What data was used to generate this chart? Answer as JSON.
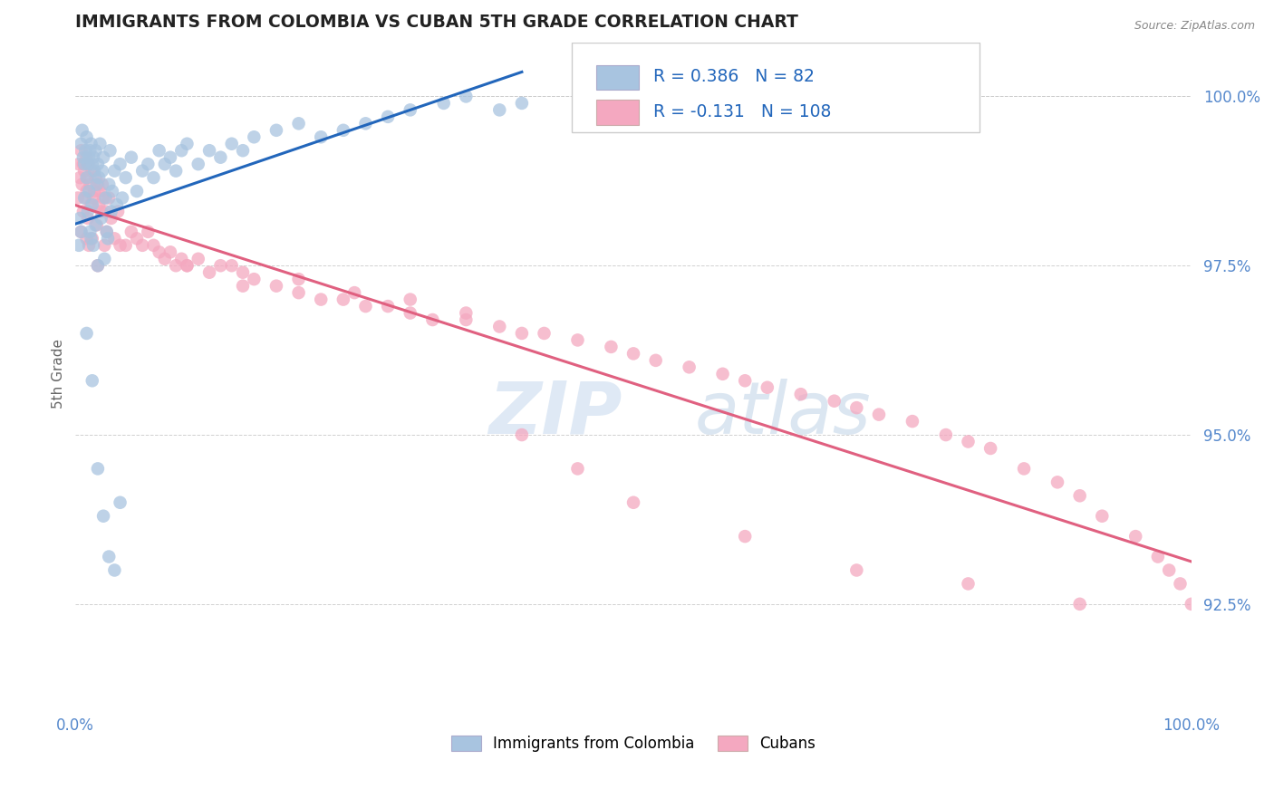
{
  "title": "IMMIGRANTS FROM COLOMBIA VS CUBAN 5TH GRADE CORRELATION CHART",
  "source_text": "Source: ZipAtlas.com",
  "ylabel": "5th Grade",
  "xlim": [
    0.0,
    100.0
  ],
  "ylim": [
    91.0,
    100.8
  ],
  "yticks": [
    92.5,
    95.0,
    97.5,
    100.0
  ],
  "ytick_labels": [
    "92.5%",
    "95.0%",
    "97.5%",
    "100.0%"
  ],
  "colombia_R": 0.386,
  "colombia_N": 82,
  "cuba_R": -0.131,
  "cuba_N": 108,
  "colombia_color": "#a8c4e0",
  "cuba_color": "#f4a8c0",
  "colombia_line_color": "#2266bb",
  "cuba_line_color": "#e06080",
  "watermark_zip": "ZIP",
  "watermark_atlas": "atlas",
  "background_color": "#ffffff",
  "grid_color": "#cccccc",
  "title_color": "#333333",
  "axis_label_color": "#666666",
  "tick_label_color": "#5588cc",
  "legend_color": "#2266bb",
  "colombia_x": [
    0.3,
    0.4,
    0.5,
    0.5,
    0.6,
    0.7,
    0.8,
    0.8,
    0.9,
    1.0,
    1.0,
    1.1,
    1.1,
    1.2,
    1.2,
    1.3,
    1.3,
    1.4,
    1.4,
    1.5,
    1.5,
    1.6,
    1.6,
    1.7,
    1.8,
    1.8,
    1.9,
    2.0,
    2.0,
    2.1,
    2.2,
    2.3,
    2.4,
    2.5,
    2.6,
    2.7,
    2.8,
    2.9,
    3.0,
    3.1,
    3.2,
    3.3,
    3.5,
    3.7,
    4.0,
    4.2,
    4.5,
    5.0,
    5.5,
    6.0,
    6.5,
    7.0,
    7.5,
    8.0,
    8.5,
    9.0,
    9.5,
    10.0,
    11.0,
    12.0,
    13.0,
    14.0,
    15.0,
    16.0,
    18.0,
    20.0,
    22.0,
    24.0,
    26.0,
    28.0,
    30.0,
    33.0,
    35.0,
    38.0,
    40.0,
    1.0,
    1.5,
    2.0,
    2.5,
    3.0,
    3.5,
    4.0
  ],
  "colombia_y": [
    97.8,
    98.2,
    99.3,
    98.0,
    99.5,
    99.1,
    99.0,
    98.5,
    99.2,
    99.4,
    98.8,
    99.0,
    98.3,
    99.1,
    98.6,
    99.2,
    98.0,
    99.3,
    97.9,
    99.0,
    98.4,
    99.1,
    97.8,
    98.9,
    99.2,
    98.1,
    98.7,
    99.0,
    97.5,
    98.8,
    99.3,
    98.2,
    98.9,
    99.1,
    97.6,
    98.5,
    98.0,
    97.9,
    98.7,
    99.2,
    98.3,
    98.6,
    98.9,
    98.4,
    99.0,
    98.5,
    98.8,
    99.1,
    98.6,
    98.9,
    99.0,
    98.8,
    99.2,
    99.0,
    99.1,
    98.9,
    99.2,
    99.3,
    99.0,
    99.2,
    99.1,
    99.3,
    99.2,
    99.4,
    99.5,
    99.6,
    99.4,
    99.5,
    99.6,
    99.7,
    99.8,
    99.9,
    100.0,
    99.8,
    99.9,
    96.5,
    95.8,
    94.5,
    93.8,
    93.2,
    93.0,
    94.0
  ],
  "cuba_x": [
    0.2,
    0.3,
    0.4,
    0.5,
    0.5,
    0.6,
    0.7,
    0.7,
    0.8,
    0.9,
    1.0,
    1.0,
    1.0,
    1.1,
    1.1,
    1.2,
    1.2,
    1.3,
    1.4,
    1.5,
    1.5,
    1.6,
    1.7,
    1.8,
    1.9,
    2.0,
    2.0,
    2.1,
    2.2,
    2.3,
    2.4,
    2.5,
    2.6,
    2.7,
    2.8,
    3.0,
    3.2,
    3.5,
    3.8,
    4.0,
    4.5,
    5.0,
    5.5,
    6.0,
    6.5,
    7.0,
    7.5,
    8.0,
    8.5,
    9.0,
    9.5,
    10.0,
    11.0,
    12.0,
    13.0,
    14.0,
    15.0,
    16.0,
    18.0,
    20.0,
    22.0,
    24.0,
    26.0,
    28.0,
    30.0,
    32.0,
    35.0,
    38.0,
    40.0,
    42.0,
    45.0,
    48.0,
    50.0,
    52.0,
    55.0,
    58.0,
    60.0,
    62.0,
    65.0,
    68.0,
    70.0,
    72.0,
    75.0,
    78.0,
    80.0,
    82.0,
    85.0,
    88.0,
    90.0,
    92.0,
    95.0,
    97.0,
    98.0,
    99.0,
    100.0,
    40.0,
    45.0,
    50.0,
    60.0,
    70.0,
    80.0,
    90.0,
    30.0,
    35.0,
    20.0,
    25.0,
    10.0,
    15.0
  ],
  "cuba_y": [
    98.5,
    99.0,
    98.8,
    99.2,
    98.0,
    98.7,
    99.0,
    98.3,
    98.9,
    98.5,
    99.1,
    98.6,
    97.9,
    98.8,
    98.2,
    99.0,
    97.8,
    98.7,
    98.4,
    98.9,
    97.9,
    98.5,
    98.6,
    98.8,
    98.1,
    98.7,
    97.5,
    98.4,
    98.6,
    98.3,
    98.7,
    98.5,
    97.8,
    98.3,
    98.0,
    98.5,
    98.2,
    97.9,
    98.3,
    97.8,
    97.8,
    98.0,
    97.9,
    97.8,
    98.0,
    97.8,
    97.7,
    97.6,
    97.7,
    97.5,
    97.6,
    97.5,
    97.6,
    97.4,
    97.5,
    97.5,
    97.4,
    97.3,
    97.2,
    97.1,
    97.0,
    97.0,
    96.9,
    96.9,
    96.8,
    96.7,
    96.7,
    96.6,
    96.5,
    96.5,
    96.4,
    96.3,
    96.2,
    96.1,
    96.0,
    95.9,
    95.8,
    95.7,
    95.6,
    95.5,
    95.4,
    95.3,
    95.2,
    95.0,
    94.9,
    94.8,
    94.5,
    94.3,
    94.1,
    93.8,
    93.5,
    93.2,
    93.0,
    92.8,
    92.5,
    95.0,
    94.5,
    94.0,
    93.5,
    93.0,
    92.8,
    92.5,
    97.0,
    96.8,
    97.3,
    97.1,
    97.5,
    97.2
  ]
}
